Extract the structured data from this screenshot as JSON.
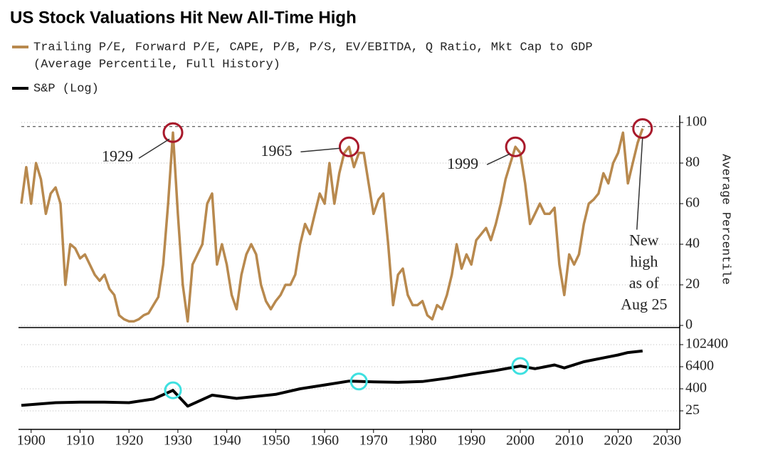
{
  "chart_data": [
    {
      "type": "line",
      "title": "US Stock Valuations Hit New All-Time High",
      "ylabel": "Average Percentile",
      "xlim": [
        1898,
        2032.6
      ],
      "ylim": [
        0,
        100
      ],
      "yticks": [
        0,
        20,
        40,
        60,
        80,
        100
      ],
      "grid": true,
      "hline": 98,
      "series": [
        {
          "name": "Trailing P/E, Forward P/E, CAPE, P/B, P/S, EV/EBITDA, Q Ratio, Mkt Cap to GDP",
          "description": "(Average Percentile, Full History)",
          "color": "#b8894e",
          "x": [
            1898,
            1899,
            1900,
            1901,
            1902,
            1903,
            1904,
            1905,
            1906,
            1907,
            1908,
            1909,
            1910,
            1911,
            1912,
            1913,
            1914,
            1915,
            1916,
            1917,
            1918,
            1919,
            1920,
            1921,
            1922,
            1923,
            1924,
            1925,
            1926,
            1927,
            1928,
            1929,
            1930,
            1931,
            1932,
            1933,
            1934,
            1935,
            1936,
            1937,
            1938,
            1939,
            1940,
            1941,
            1942,
            1943,
            1944,
            1945,
            1946,
            1947,
            1948,
            1949,
            1950,
            1951,
            1952,
            1953,
            1954,
            1955,
            1956,
            1957,
            1958,
            1959,
            1960,
            1961,
            1962,
            1963,
            1964,
            1965,
            1966,
            1967,
            1968,
            1969,
            1970,
            1971,
            1972,
            1973,
            1974,
            1975,
            1976,
            1977,
            1978,
            1979,
            1980,
            1981,
            1982,
            1983,
            1984,
            1985,
            1986,
            1987,
            1988,
            1989,
            1990,
            1991,
            1992,
            1993,
            1994,
            1995,
            1996,
            1997,
            1998,
            1999,
            2000,
            2001,
            2002,
            2003,
            2004,
            2005,
            2006,
            2007,
            2008,
            2009,
            2010,
            2011,
            2012,
            2013,
            2014,
            2015,
            2016,
            2017,
            2018,
            2019,
            2020,
            2021,
            2022,
            2023,
            2024,
            2025
          ],
          "values": [
            60,
            78,
            60,
            80,
            72,
            55,
            65,
            68,
            60,
            20,
            40,
            38,
            33,
            35,
            30,
            25,
            22,
            25,
            18,
            15,
            5,
            3,
            2,
            2,
            3,
            5,
            6,
            10,
            14,
            30,
            60,
            95,
            55,
            20,
            2,
            30,
            35,
            40,
            60,
            65,
            30,
            40,
            30,
            15,
            8,
            25,
            35,
            40,
            35,
            20,
            12,
            8,
            12,
            15,
            20,
            20,
            25,
            40,
            50,
            45,
            55,
            65,
            60,
            80,
            60,
            75,
            85,
            88,
            78,
            85,
            85,
            70,
            55,
            62,
            65,
            40,
            10,
            25,
            28,
            15,
            10,
            10,
            12,
            5,
            3,
            10,
            8,
            15,
            25,
            40,
            28,
            35,
            30,
            42,
            45,
            48,
            42,
            50,
            60,
            72,
            80,
            88,
            85,
            70,
            50,
            55,
            60,
            55,
            55,
            58,
            30,
            15,
            35,
            30,
            35,
            50,
            60,
            62,
            65,
            75,
            70,
            80,
            85,
            95,
            70,
            80,
            90,
            97
          ]
        }
      ],
      "annotations": [
        {
          "x": 1929,
          "y": 95,
          "lines": [
            "1929"
          ]
        },
        {
          "x": 1965,
          "y": 88,
          "lines": [
            "1965"
          ]
        },
        {
          "x": 1999,
          "y": 88,
          "lines": [
            "1999"
          ]
        },
        {
          "x": 2025,
          "y": 97,
          "lines": [
            "New",
            "high",
            "as of",
            "Aug 25"
          ]
        }
      ]
    },
    {
      "type": "line",
      "log": true,
      "xlim": [
        1898,
        2032.6
      ],
      "xticks": [
        1900,
        1910,
        1920,
        1930,
        1940,
        1950,
        1960,
        1970,
        1980,
        1990,
        2000,
        2010,
        2020,
        2030
      ],
      "ylim": [
        3.2,
        428000
      ],
      "yticks": [
        25,
        400,
        6400,
        102400
      ],
      "grid": true,
      "series": [
        {
          "name": "S&P (Log)",
          "color": "#000000",
          "x": [
            1898,
            1905,
            1910,
            1915,
            1920,
            1925,
            1929,
            1932,
            1937,
            1942,
            1950,
            1955,
            1960,
            1965,
            1970,
            1975,
            1980,
            1985,
            1990,
            1995,
            2000,
            2003,
            2007,
            2009,
            2013,
            2018,
            2020,
            2022,
            2025
          ],
          "values": [
            50,
            70,
            75,
            75,
            70,
            110,
            330,
            45,
            180,
            120,
            200,
            400,
            650,
            1050,
            950,
            900,
            1000,
            1500,
            2500,
            4000,
            7000,
            5000,
            8000,
            5500,
            12000,
            22000,
            28000,
            38000,
            46000
          ]
        }
      ],
      "highlights": [
        {
          "x": 1929,
          "y": 330
        },
        {
          "x": 1967,
          "y": 1000
        },
        {
          "x": 2000,
          "y": 7000
        }
      ]
    }
  ]
}
